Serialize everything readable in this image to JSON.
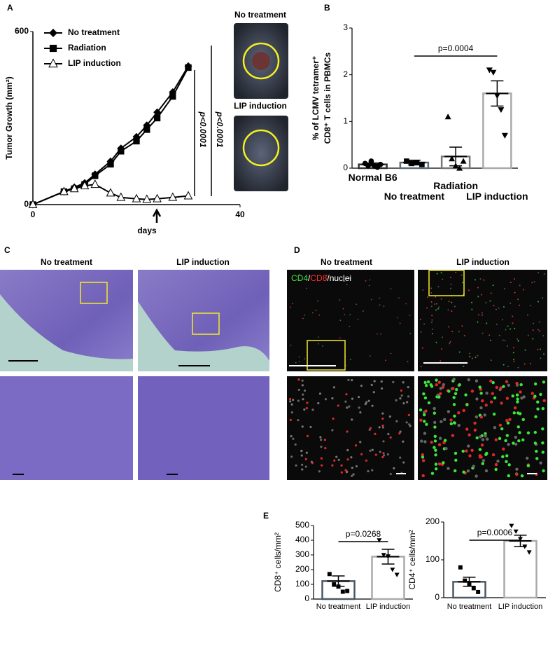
{
  "figure": {
    "panel_labels": [
      "A",
      "B",
      "C",
      "D",
      "E"
    ],
    "photo_labels_a": [
      "No treatment",
      "LIP induction"
    ],
    "panel_c_titles": [
      "No treatment",
      "LIP induction"
    ],
    "panel_d_titles": [
      "No treatment",
      "LIP induction"
    ],
    "stain_legend": [
      "CD4",
      "/",
      "CD8",
      "/nuclei"
    ]
  },
  "chart_data": [
    {
      "type": "line",
      "ylabel": "Tumor Growth (mm²)",
      "xlabel": "days",
      "x": [
        0,
        6,
        8,
        10,
        12,
        15,
        17,
        20,
        22,
        24,
        27,
        30
      ],
      "series": [
        {
          "name": "No treatment",
          "marker": "diamond",
          "color": "#000000",
          "values": [
            0,
            45,
            60,
            75,
            105,
            150,
            195,
            235,
            275,
            320,
            390,
            480
          ]
        },
        {
          "name": "Radiation",
          "marker": "square",
          "color": "#000000",
          "values": [
            0,
            45,
            55,
            70,
            100,
            140,
            185,
            220,
            260,
            300,
            375,
            475
          ]
        },
        {
          "name": "LIP induction",
          "marker": "triangle-open",
          "color": "#000000",
          "values": [
            0,
            45,
            55,
            65,
            70,
            40,
            25,
            20,
            18,
            20,
            25,
            30
          ]
        }
      ],
      "xlim": [
        0,
        40
      ],
      "ylim": [
        0,
        600
      ],
      "xticks": [
        0,
        40
      ],
      "yticks": [
        0,
        600
      ],
      "annotations": [
        "p<0.0001",
        "p<0.0001"
      ]
    },
    {
      "type": "bar",
      "ylabel": [
        "% of LCMV tetramer⁺",
        "CD8⁺ T cells in PBMCs"
      ],
      "categories": [
        "Normal B6",
        "No treatment",
        "Radiation",
        "LIP induction"
      ],
      "values": [
        0.08,
        0.12,
        0.25,
        1.6
      ],
      "errors": [
        0.03,
        0.05,
        0.2,
        0.27
      ],
      "points": [
        [
          0.1,
          0.05,
          0.15,
          0.05,
          0.02,
          0.08
        ],
        [
          0.15,
          0.1,
          0.12,
          0.08
        ],
        [
          1.1,
          0.2,
          0.05,
          0.0,
          0.15
        ],
        [
          2.1,
          2.05,
          1.55,
          1.25,
          0.7
        ]
      ],
      "markers": [
        "circle",
        "square",
        "triangle",
        "triangle-down"
      ],
      "colors": [
        "#333333",
        "#5a6b7a",
        "#777777",
        "#aaaaaa"
      ],
      "ylim": [
        0,
        3
      ],
      "yticks": [
        0,
        1,
        2,
        3
      ],
      "annotation": "p=0.0004"
    },
    {
      "type": "bar",
      "ylabel": "CD8⁺ cells/mm²",
      "categories": [
        "No treatment",
        "LIP induction"
      ],
      "values": [
        122,
        288
      ],
      "errors": [
        35,
        50
      ],
      "points": [
        [
          170,
          100,
          85,
          50,
          55
        ],
        [
          400,
          300,
          290,
          200,
          165
        ]
      ],
      "markers": [
        "square",
        "triangle-down"
      ],
      "colors": [
        "#4a5866",
        "#aaaaaa"
      ],
      "ylim": [
        0,
        500
      ],
      "yticks": [
        0,
        100,
        200,
        300,
        400,
        500
      ],
      "annotation": "p=0.0268"
    },
    {
      "type": "bar",
      "ylabel": "CD4⁺ cells/mm²",
      "categories": [
        "No treatment",
        "LIP induction"
      ],
      "values": [
        42,
        150
      ],
      "errors": [
        12,
        15
      ],
      "points": [
        [
          80,
          45,
          35,
          25,
          15
        ],
        [
          190,
          175,
          155,
          135,
          120
        ]
      ],
      "markers": [
        "square",
        "triangle-down"
      ],
      "colors": [
        "#4a5866",
        "#aaaaaa"
      ],
      "ylim": [
        0,
        200
      ],
      "yticks": [
        0,
        100,
        200
      ],
      "annotation": "p=0.0006"
    }
  ]
}
